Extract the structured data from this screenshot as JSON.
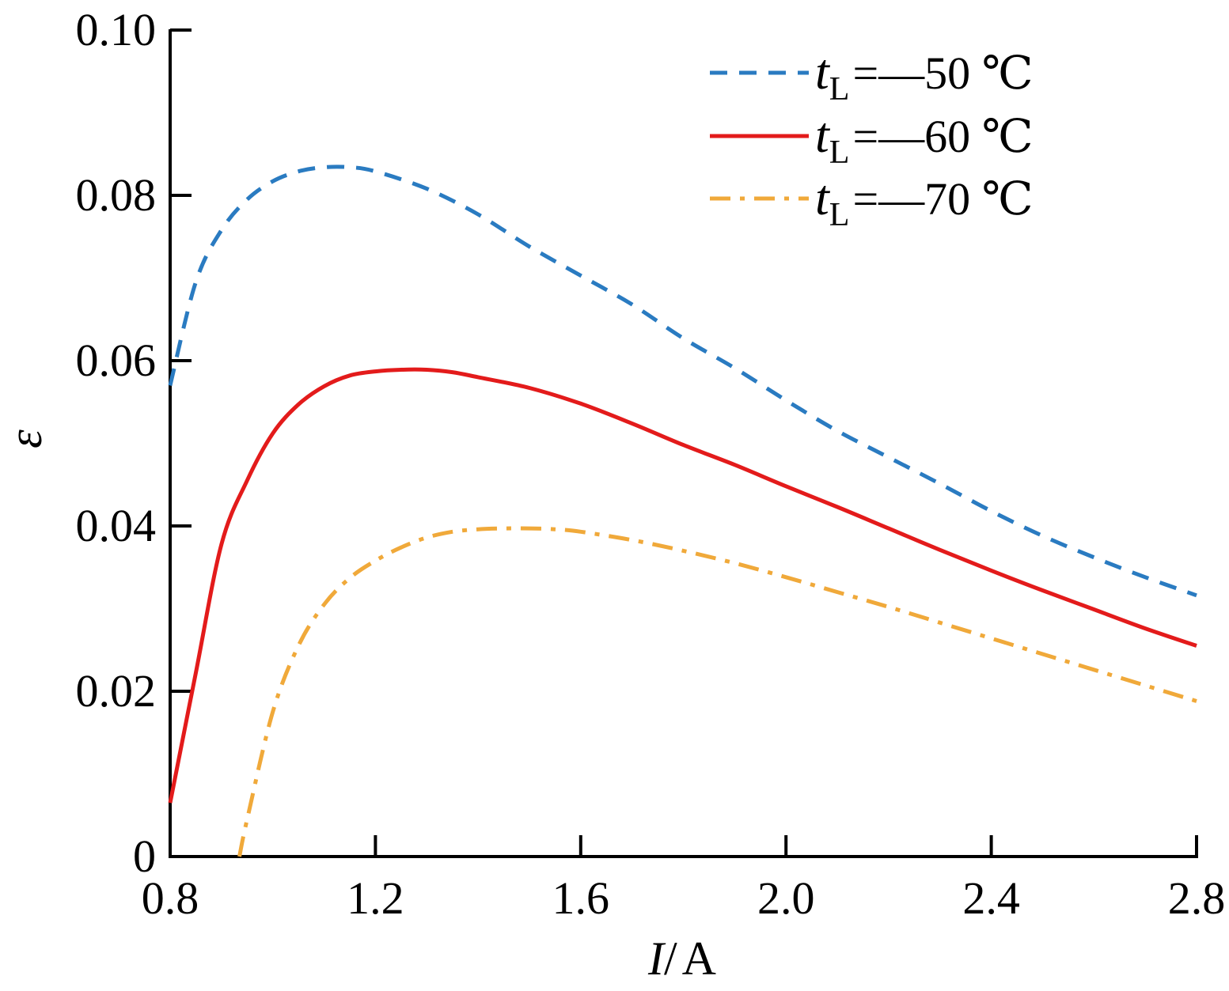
{
  "chart_data": {
    "type": "line",
    "xlabel": {
      "symbol": "I",
      "sep": "/",
      "unit": "A"
    },
    "ylabel": "ε",
    "xlim": [
      0.8,
      2.8
    ],
    "ylim": [
      0,
      0.1
    ],
    "xticks": [
      0.8,
      1.2,
      1.6,
      2.0,
      2.4,
      2.8
    ],
    "xtick_labels": [
      "0.8",
      "1.2",
      "1.6",
      "2.0",
      "2.4",
      "2.8"
    ],
    "yticks": [
      0,
      0.02,
      0.04,
      0.06,
      0.08,
      0.1
    ],
    "ytick_labels": [
      "0",
      "0.02",
      "0.04",
      "0.06",
      "0.08",
      "0.10"
    ],
    "grid": false,
    "legend_position": "top-right",
    "series": [
      {
        "name": "tL=−50 ℃",
        "label_var": "t",
        "label_sub": "L",
        "label_rest": "=—50 ℃",
        "color": "#2a7bc1",
        "style": "dashed",
        "x": [
          0.8,
          0.85,
          0.9,
          0.95,
          1.0,
          1.05,
          1.1,
          1.15,
          1.2,
          1.3,
          1.4,
          1.5,
          1.6,
          1.7,
          1.8,
          1.9,
          2.0,
          2.1,
          2.2,
          2.3,
          2.4,
          2.5,
          2.6,
          2.7,
          2.8
        ],
        "y": [
          0.057,
          0.0695,
          0.0758,
          0.0795,
          0.0817,
          0.0829,
          0.0834,
          0.0834,
          0.0829,
          0.0808,
          0.0777,
          0.0738,
          0.0703,
          0.0668,
          0.0627,
          0.0591,
          0.0552,
          0.0515,
          0.0483,
          0.0451,
          0.0418,
          0.0388,
          0.0362,
          0.0338,
          0.0316
        ]
      },
      {
        "name": "tL=−60 ℃",
        "label_var": "t",
        "label_sub": "L",
        "label_rest": "=—60 ℃",
        "color": "#e31b1b",
        "style": "solid",
        "x": [
          0.8,
          0.85,
          0.9,
          0.95,
          1.0,
          1.05,
          1.1,
          1.15,
          1.2,
          1.25,
          1.3,
          1.35,
          1.4,
          1.5,
          1.6,
          1.7,
          1.8,
          1.9,
          2.0,
          2.1,
          2.2,
          2.3,
          2.4,
          2.5,
          2.6,
          2.7,
          2.8
        ],
        "y": [
          0.0065,
          0.0222,
          0.0378,
          0.0455,
          0.0512,
          0.0547,
          0.0569,
          0.0582,
          0.0587,
          0.0589,
          0.0589,
          0.0586,
          0.058,
          0.0567,
          0.0548,
          0.0524,
          0.0498,
          0.0474,
          0.0448,
          0.0423,
          0.0397,
          0.0371,
          0.0346,
          0.0322,
          0.0299,
          0.0276,
          0.0255
        ]
      },
      {
        "name": "tL=−70 ℃",
        "label_var": "t",
        "label_sub": "L",
        "label_rest": "=—70 ℃",
        "color": "#f0a93a",
        "style": "dashdot",
        "x": [
          0.935,
          0.95,
          1.0,
          1.05,
          1.1,
          1.15,
          1.2,
          1.25,
          1.3,
          1.35,
          1.4,
          1.45,
          1.5,
          1.55,
          1.6,
          1.7,
          1.8,
          1.9,
          2.0,
          2.1,
          2.2,
          2.3,
          2.4,
          2.5,
          2.6,
          2.7,
          2.8
        ],
        "y": [
          0.0,
          0.0045,
          0.0175,
          0.0255,
          0.0305,
          0.0337,
          0.0358,
          0.0374,
          0.0386,
          0.0393,
          0.0396,
          0.0397,
          0.0397,
          0.0396,
          0.0393,
          0.0383,
          0.037,
          0.0355,
          0.0338,
          0.032,
          0.0302,
          0.0283,
          0.0264,
          0.0245,
          0.0226,
          0.0207,
          0.0188
        ]
      }
    ]
  }
}
